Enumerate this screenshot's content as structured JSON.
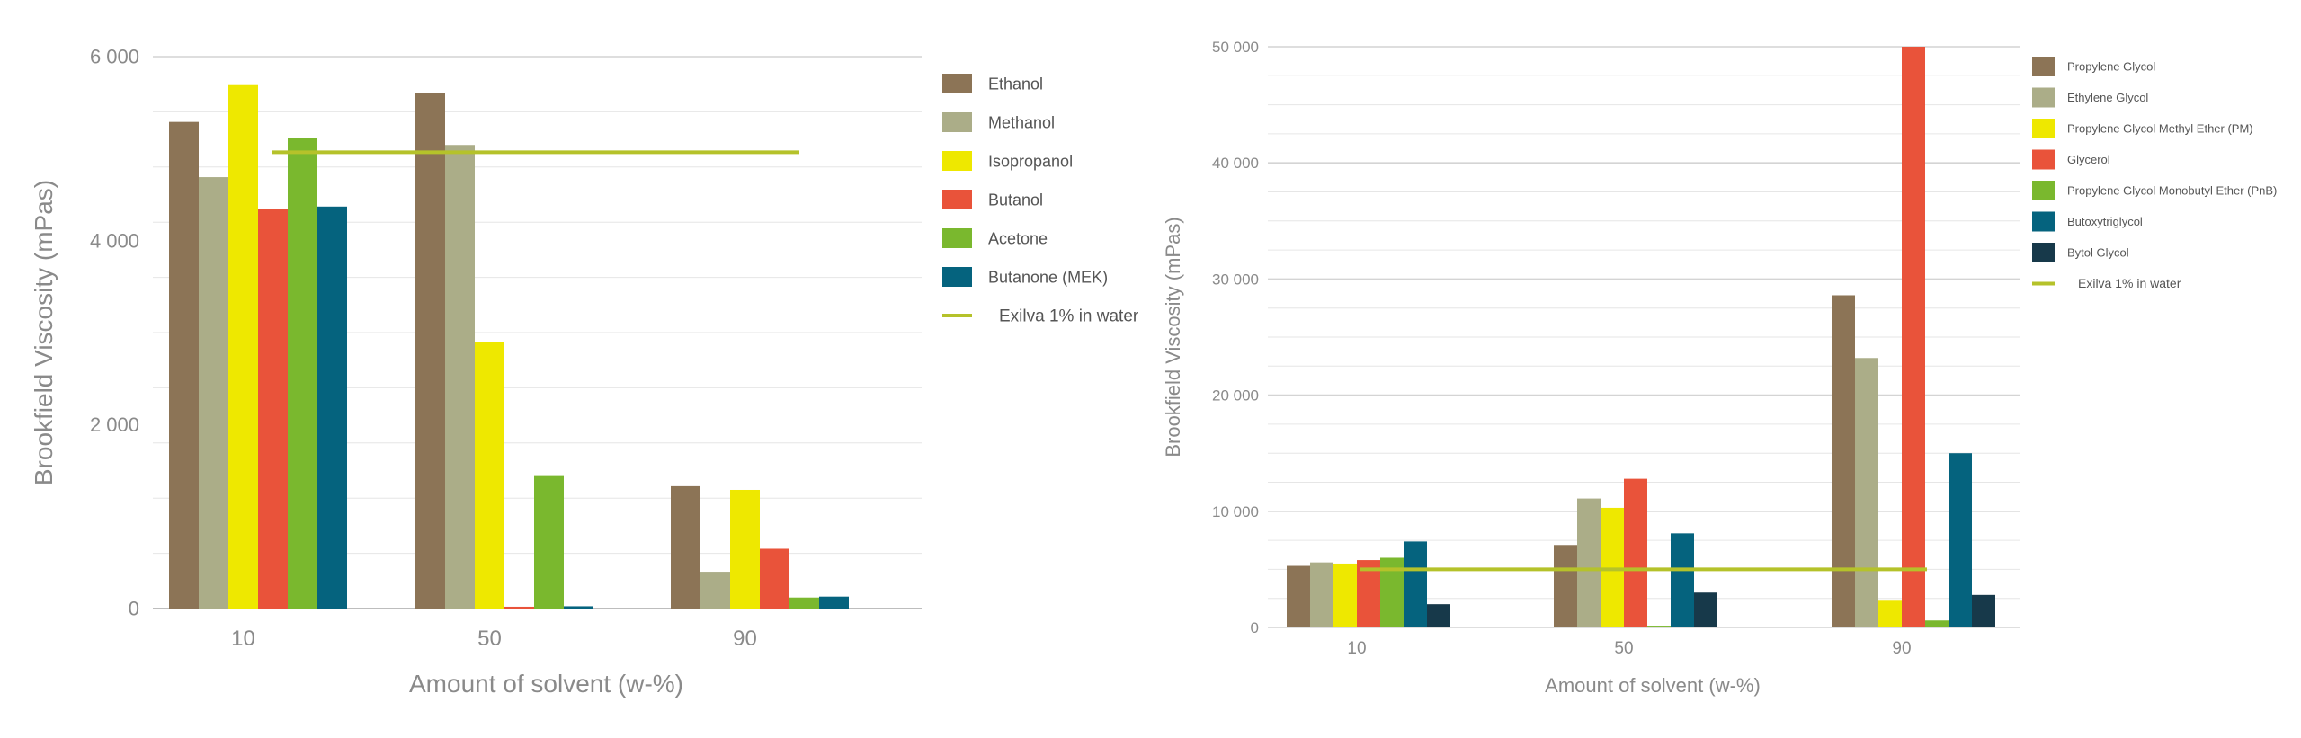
{
  "chart_data": [
    {
      "type": "bar",
      "title": "",
      "xlabel": "Amount of solvent (w-%)",
      "ylabel": "Brookfield Viscosity (mPas)",
      "ylim": [
        0,
        6000
      ],
      "yticks": [
        0,
        2000,
        4000,
        6000
      ],
      "ytick_labels": [
        "0",
        "2 000",
        "4 000",
        "6 000"
      ],
      "categories": [
        "10",
        "50",
        "90"
      ],
      "grid": true,
      "legend_position": "right",
      "series": [
        {
          "name": "Ethanol",
          "color": "#8C7456",
          "values": [
            5290,
            5600,
            1330
          ]
        },
        {
          "name": "Methanol",
          "color": "#ABAD88",
          "values": [
            4690,
            5040,
            400
          ]
        },
        {
          "name": "Isopropanol",
          "color": "#EEE800",
          "values": [
            5690,
            2900,
            1290
          ]
        },
        {
          "name": "Butanol",
          "color": "#E9533A",
          "values": [
            4340,
            20,
            650
          ]
        },
        {
          "name": "Acetone",
          "color": "#7AB82E",
          "values": [
            5120,
            1450,
            120
          ]
        },
        {
          "name": "Butanone (MEK)",
          "color": "#05637E",
          "values": [
            4370,
            25,
            130
          ]
        }
      ],
      "reference_line": {
        "name": "Exilva 1% in water",
        "color": "#B5C22A",
        "value": 4960
      }
    },
    {
      "type": "bar",
      "title": "",
      "xlabel": "Amount of solvent (w-%)",
      "ylabel": "Brookfield Viscosity (mPas)",
      "ylim": [
        0,
        50000
      ],
      "yticks": [
        0,
        10000,
        20000,
        30000,
        40000,
        50000
      ],
      "ytick_labels": [
        "0",
        "10 000",
        "20 000",
        "30 000",
        "40 000",
        "50 000"
      ],
      "categories": [
        "10",
        "50",
        "90"
      ],
      "grid": true,
      "legend_position": "right",
      "series": [
        {
          "name": "Propylene Glycol",
          "color": "#8C7456",
          "values": [
            5300,
            7100,
            28600
          ]
        },
        {
          "name": "Ethylene Glycol",
          "color": "#ABAD88",
          "values": [
            5600,
            11100,
            23200
          ]
        },
        {
          "name": "Propylene Glycol Methyl Ether (PM)",
          "color": "#EEE800",
          "values": [
            5500,
            10300,
            2300
          ]
        },
        {
          "name": "Glycerol",
          "color": "#E9533A",
          "values": [
            5800,
            12800,
            50000
          ]
        },
        {
          "name": "Propylene Glycol Monobutyl Ether (PnB)",
          "color": "#7AB82E",
          "values": [
            6000,
            150,
            600
          ]
        },
        {
          "name": "Butoxytriglycol",
          "color": "#05637E",
          "values": [
            7400,
            8100,
            15000
          ]
        },
        {
          "name": "Bytol Glycol",
          "color": "#17394A",
          "values": [
            2000,
            3000,
            2800
          ]
        }
      ],
      "reference_line": {
        "name": "Exilva 1% in water",
        "color": "#B5C22A",
        "value": 5000
      }
    }
  ]
}
